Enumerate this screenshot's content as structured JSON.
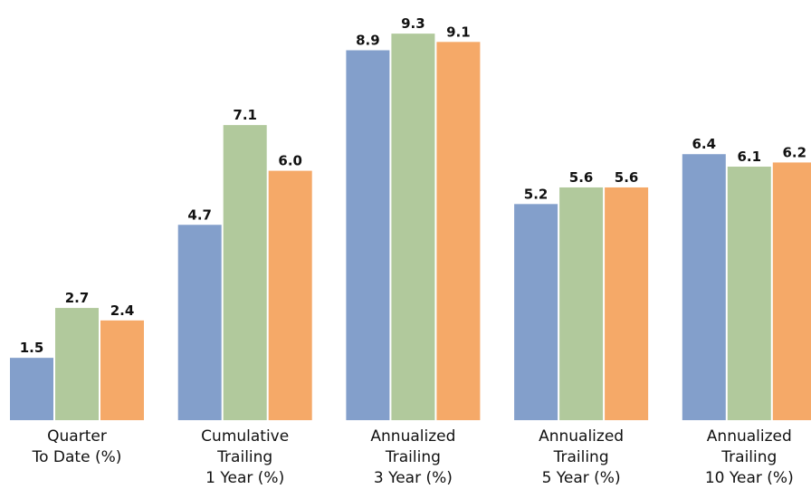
{
  "chart_data": {
    "type": "bar",
    "categories": [
      [
        "Quarter",
        "To Date (%)"
      ],
      [
        "Cumulative",
        "Trailing",
        "1 Year (%)"
      ],
      [
        "Annualized",
        "Trailing",
        "3 Year (%)"
      ],
      [
        "Annualized",
        "Trailing",
        "5 Year (%)"
      ],
      [
        "Annualized",
        "Trailing",
        "10 Year (%)"
      ]
    ],
    "series": [
      {
        "color": "#839fcb",
        "values": [
          1.5,
          4.7,
          8.9,
          5.2,
          6.4
        ]
      },
      {
        "color": "#b1c99c",
        "values": [
          2.7,
          7.1,
          9.3,
          5.6,
          6.1
        ]
      },
      {
        "color": "#f5a968",
        "values": [
          2.4,
          6.0,
          9.1,
          5.6,
          6.2
        ]
      }
    ],
    "value_labels": [
      [
        "1.5",
        "4.7",
        "8.9",
        "5.2",
        "6.4"
      ],
      [
        "2.7",
        "7.1",
        "9.3",
        "5.6",
        "6.1"
      ],
      [
        "2.4",
        "6.0",
        "9.1",
        "5.6",
        "6.2"
      ]
    ],
    "title": "",
    "xlabel": "",
    "ylabel": "",
    "ylim": [
      0,
      10
    ],
    "grid": false,
    "legend": "none",
    "axes_visible": false
  }
}
